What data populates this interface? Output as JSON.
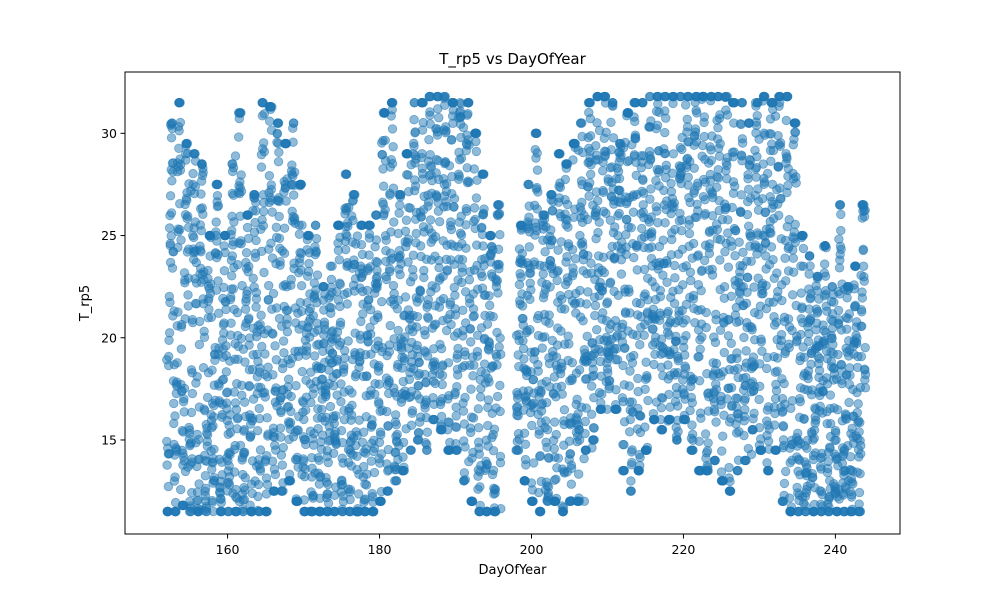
{
  "chart_data": {
    "type": "scatter",
    "title": "T_rp5 vs DayOfYear",
    "xlabel": "DayOfYear",
    "ylabel": "T_rp5",
    "xlim": [
      146.5,
      248.5
    ],
    "ylim": [
      10.4,
      33.0
    ],
    "xticks": [
      160,
      180,
      200,
      220,
      240
    ],
    "yticks": [
      15,
      20,
      25,
      30
    ],
    "grid": false,
    "legend": "none",
    "marker_color": "#1f77b4",
    "marker_alpha": 0.5,
    "x_data_range": [
      152,
      243
    ],
    "y_data_range": [
      11.3,
      31.8
    ],
    "gap_days": [
      196,
      197
    ],
    "point_spacing_days": 0.0417,
    "day_profiles": [
      [
        152,
        11.5,
        30.5
      ],
      [
        153,
        11.5,
        31.5
      ],
      [
        154,
        11.8,
        29.5
      ],
      [
        155,
        11.5,
        29.0
      ],
      [
        156,
        11.5,
        28.5
      ],
      [
        157,
        11.5,
        25.0
      ],
      [
        158,
        11.5,
        27.5
      ],
      [
        159,
        11.5,
        25.0
      ],
      [
        160,
        11.5,
        28.5
      ],
      [
        161,
        11.5,
        31.0
      ],
      [
        162,
        11.5,
        26.0
      ],
      [
        163,
        11.5,
        27.0
      ],
      [
        164,
        11.5,
        31.5
      ],
      [
        165,
        11.5,
        31.3
      ],
      [
        166,
        12.5,
        30.5
      ],
      [
        167,
        12.5,
        29.5
      ],
      [
        168,
        13.0,
        30.5
      ],
      [
        169,
        12.0,
        27.5
      ],
      [
        170,
        11.5,
        25.0
      ],
      [
        171,
        11.5,
        25.5
      ],
      [
        172,
        11.5,
        22.5
      ],
      [
        173,
        11.5,
        23.5
      ],
      [
        174,
        11.5,
        25.5
      ],
      [
        175,
        11.5,
        28.0
      ],
      [
        176,
        11.5,
        27.0
      ],
      [
        177,
        11.5,
        25.5
      ],
      [
        178,
        11.5,
        25.5
      ],
      [
        179,
        11.5,
        26.0
      ],
      [
        180,
        12.0,
        31.0
      ],
      [
        181,
        12.5,
        31.5
      ],
      [
        182,
        13.0,
        27.0
      ],
      [
        183,
        13.5,
        29.0
      ],
      [
        184,
        14.5,
        31.5
      ],
      [
        185,
        15.0,
        31.5
      ],
      [
        186,
        14.5,
        31.8
      ],
      [
        187,
        16.0,
        31.8
      ],
      [
        188,
        15.5,
        31.8
      ],
      [
        189,
        14.5,
        31.5
      ],
      [
        190,
        14.5,
        31.5
      ],
      [
        191,
        13.0,
        31.5
      ],
      [
        192,
        12.0,
        30.0
      ],
      [
        193,
        11.5,
        28.0
      ],
      [
        194,
        11.5,
        25.0
      ],
      [
        195,
        11.5,
        26.5
      ],
      [
        198,
        14.5,
        25.5
      ],
      [
        199,
        13.0,
        27.5
      ],
      [
        200,
        12.0,
        30.0
      ],
      [
        201,
        11.5,
        26.0
      ],
      [
        202,
        12.0,
        27.0
      ],
      [
        203,
        12.0,
        29.0
      ],
      [
        204,
        11.5,
        28.5
      ],
      [
        205,
        12.0,
        29.5
      ],
      [
        206,
        12.0,
        30.5
      ],
      [
        207,
        14.5,
        31.5
      ],
      [
        208,
        15.0,
        31.8
      ],
      [
        209,
        16.5,
        31.8
      ],
      [
        210,
        17.5,
        31.5
      ],
      [
        211,
        16.5,
        29.5
      ],
      [
        212,
        13.5,
        31.0
      ],
      [
        213,
        12.5,
        31.5
      ],
      [
        214,
        13.5,
        31.5
      ],
      [
        215,
        14.5,
        31.8
      ],
      [
        216,
        16.0,
        31.8
      ],
      [
        217,
        15.5,
        31.8
      ],
      [
        218,
        16.0,
        31.8
      ],
      [
        219,
        15.0,
        31.8
      ],
      [
        220,
        16.0,
        31.8
      ],
      [
        221,
        14.5,
        31.8
      ],
      [
        222,
        13.5,
        31.8
      ],
      [
        223,
        13.5,
        31.8
      ],
      [
        224,
        14.0,
        31.8
      ],
      [
        225,
        13.0,
        31.8
      ],
      [
        226,
        12.5,
        31.5
      ],
      [
        227,
        13.5,
        31.5
      ],
      [
        228,
        14.0,
        30.5
      ],
      [
        229,
        15.5,
        31.5
      ],
      [
        230,
        14.5,
        31.8
      ],
      [
        231,
        13.5,
        31.5
      ],
      [
        232,
        14.5,
        31.8
      ],
      [
        233,
        12.0,
        31.8
      ],
      [
        234,
        11.5,
        30.5
      ],
      [
        235,
        11.5,
        25.0
      ],
      [
        236,
        11.5,
        24.0
      ],
      [
        237,
        11.5,
        23.0
      ],
      [
        238,
        11.5,
        24.5
      ],
      [
        239,
        11.5,
        22.5
      ],
      [
        240,
        11.5,
        26.5
      ],
      [
        241,
        11.5,
        22.5
      ],
      [
        242,
        11.5,
        23.5
      ],
      [
        243,
        11.5,
        26.5
      ]
    ]
  }
}
